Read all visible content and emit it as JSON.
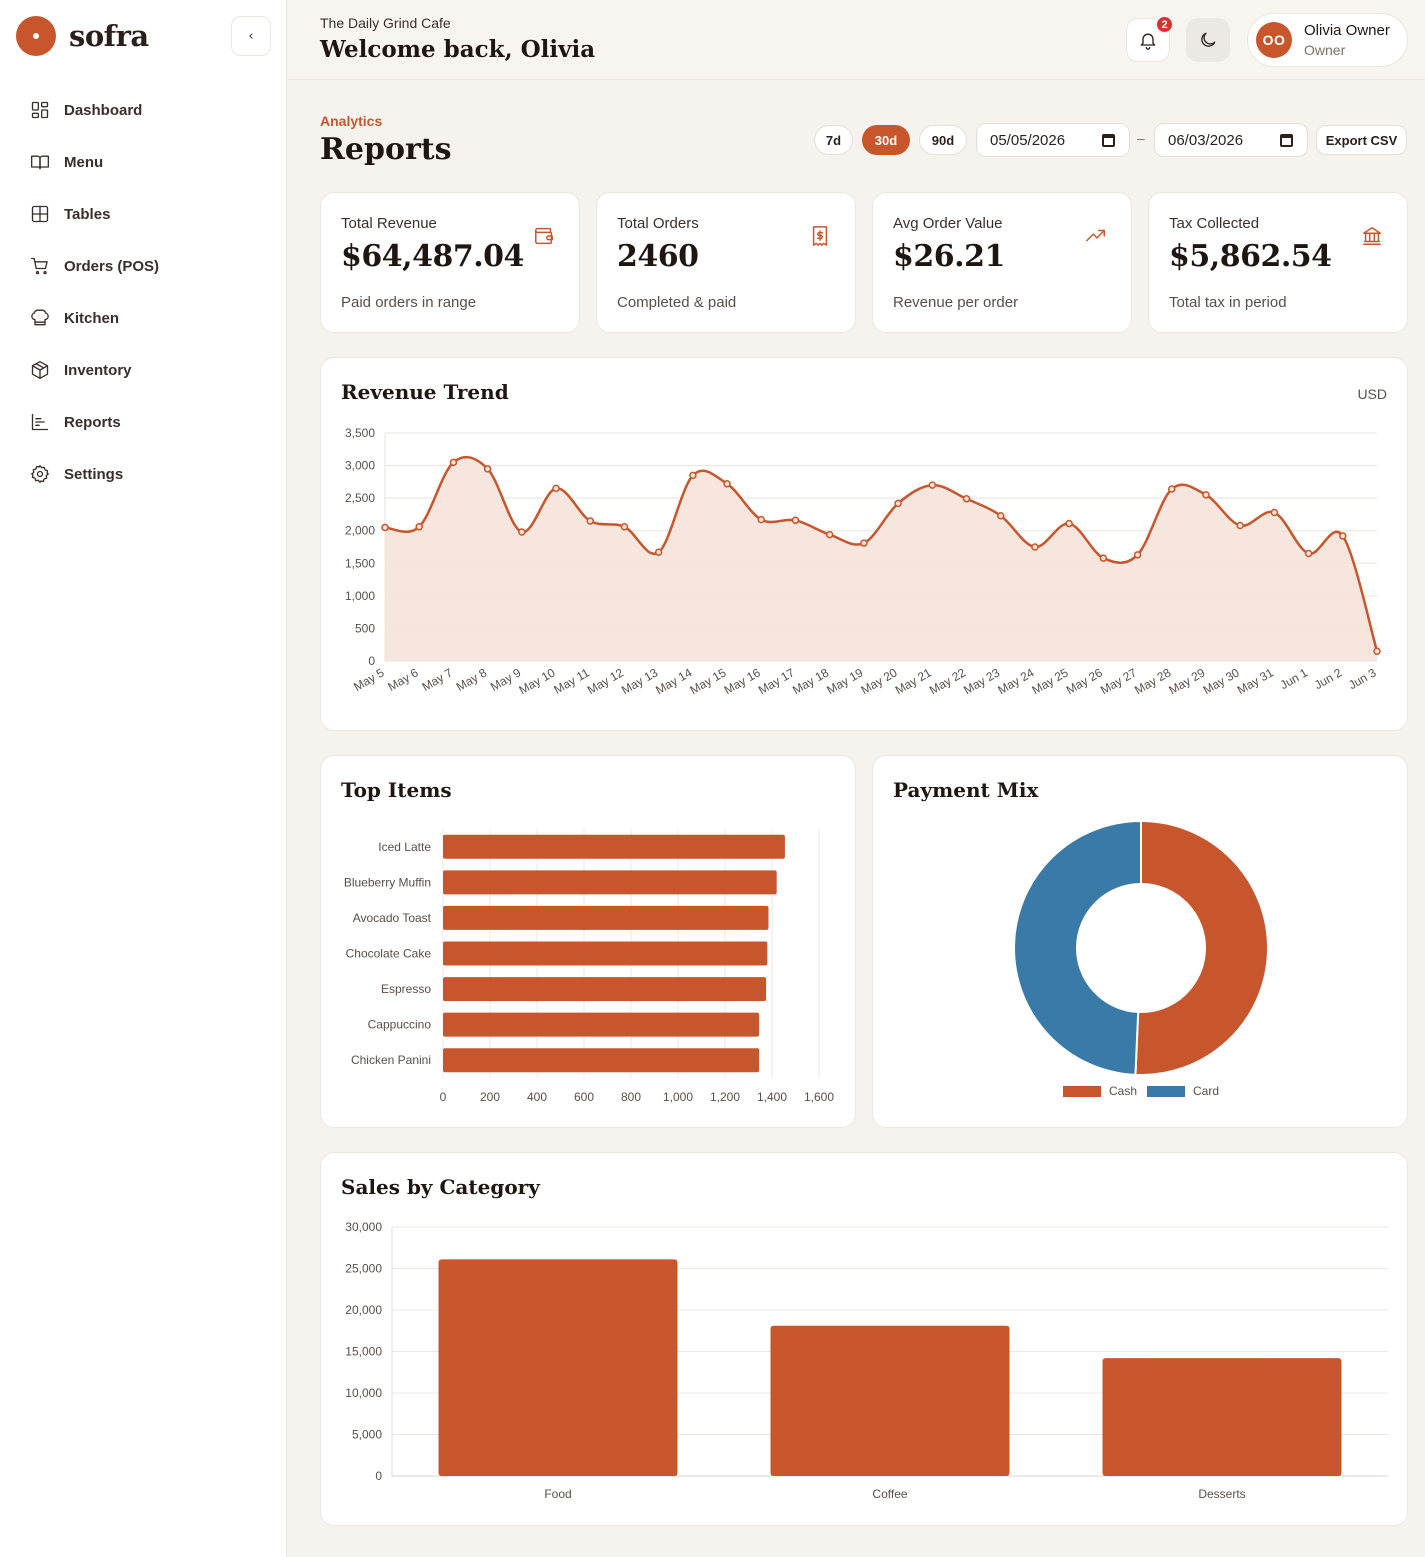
{
  "brand": {
    "name": "sofra"
  },
  "sidebar": {
    "collapse_glyph": "‹",
    "items": [
      {
        "label": "Dashboard",
        "icon": "dashboard-icon"
      },
      {
        "label": "Menu",
        "icon": "book-icon"
      },
      {
        "label": "Tables",
        "icon": "grid-icon"
      },
      {
        "label": "Orders (POS)",
        "icon": "cart-icon"
      },
      {
        "label": "Kitchen",
        "icon": "chef-hat-icon"
      },
      {
        "label": "Inventory",
        "icon": "package-icon"
      },
      {
        "label": "Reports",
        "icon": "bar-chart-icon"
      },
      {
        "label": "Settings",
        "icon": "gear-icon"
      }
    ]
  },
  "header": {
    "cafe_name": "The Daily Grind Cafe",
    "welcome": "Welcome back, Olivia",
    "notifications_count": "2",
    "user": {
      "initials": "OO",
      "name": "Olivia Owner",
      "role": "Owner"
    }
  },
  "page": {
    "kicker": "Analytics",
    "title": "Reports",
    "ranges": [
      "7d",
      "30d",
      "90d"
    ],
    "active_range": "30d",
    "date_from": "05/05/2026",
    "date_separator": "–",
    "date_to": "06/03/2026",
    "export_label": "Export CSV"
  },
  "kpis": [
    {
      "label": "Total Revenue",
      "value": "$64,487.04",
      "sub": "Paid orders in range",
      "icon": "wallet-icon"
    },
    {
      "label": "Total Orders",
      "value": "2460",
      "sub": "Completed & paid",
      "icon": "receipt-icon"
    },
    {
      "label": "Avg Order Value",
      "value": "$26.21",
      "sub": "Revenue per order",
      "icon": "trending-up-icon"
    },
    {
      "label": "Tax Collected",
      "value": "$5,862.54",
      "sub": "Total tax in period",
      "icon": "bank-icon"
    }
  ],
  "revenue_trend": {
    "title": "Revenue Trend",
    "currency": "USD"
  },
  "top_items": {
    "title": "Top Items"
  },
  "payment_mix": {
    "title": "Payment Mix"
  },
  "sales_by_category": {
    "title": "Sales by Category"
  },
  "colors": {
    "accent": "#c8562d",
    "card": "#3a7aa8",
    "area": "#f5e3da"
  },
  "chart_data": [
    {
      "type": "area",
      "title": "Revenue Trend",
      "categories": [
        "May 5",
        "May 6",
        "May 7",
        "May 8",
        "May 9",
        "May 10",
        "May 11",
        "May 12",
        "May 13",
        "May 14",
        "May 15",
        "May 16",
        "May 17",
        "May 18",
        "May 19",
        "May 20",
        "May 21",
        "May 22",
        "May 23",
        "May 24",
        "May 25",
        "May 26",
        "May 27",
        "May 28",
        "May 29",
        "May 30",
        "May 31",
        "Jun 1",
        "Jun 2",
        "Jun 3"
      ],
      "values": [
        2050,
        2060,
        3050,
        2950,
        1980,
        2650,
        2150,
        2060,
        1670,
        2850,
        2720,
        2170,
        2160,
        1940,
        1810,
        2420,
        2700,
        2490,
        2230,
        1750,
        2110,
        1580,
        1630,
        2640,
        2550,
        2080,
        2280,
        1650,
        1920,
        150
      ],
      "ylim": [
        0,
        3500
      ],
      "yticks": [
        0,
        500,
        1000,
        1500,
        2000,
        2500,
        3000,
        3500
      ],
      "grid": true
    },
    {
      "type": "bar",
      "orientation": "horizontal",
      "title": "Top Items",
      "categories": [
        "Iced Latte",
        "Blueberry Muffin",
        "Avocado Toast",
        "Chocolate Cake",
        "Espresso",
        "Cappuccino",
        "Chicken Panini"
      ],
      "values": [
        1455,
        1420,
        1385,
        1380,
        1375,
        1345,
        1345
      ],
      "xlim": [
        0,
        1600
      ],
      "xticks": [
        0,
        200,
        400,
        600,
        800,
        1000,
        1200,
        1400,
        1600
      ]
    },
    {
      "type": "pie",
      "title": "Payment Mix",
      "donut": true,
      "labels": [
        "Cash",
        "Card"
      ],
      "values": [
        50.7,
        49.3
      ],
      "legend": "bottom"
    },
    {
      "type": "bar",
      "title": "Sales by Category",
      "categories": [
        "Food",
        "Coffee",
        "Desserts"
      ],
      "values": [
        26100,
        18100,
        14200
      ],
      "ylim": [
        0,
        30000
      ],
      "yticks": [
        0,
        5000,
        10000,
        15000,
        20000,
        25000,
        30000
      ]
    }
  ]
}
